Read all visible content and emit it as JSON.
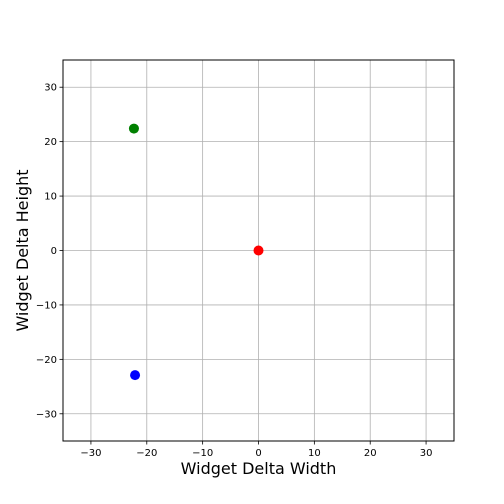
{
  "chart_data": {
    "type": "scatter",
    "title": "",
    "xlabel": "Widget Delta Width",
    "ylabel": "Widget Delta Height",
    "xlim": [
      -35,
      35
    ],
    "ylim": [
      -35,
      35
    ],
    "xticks": [
      -30,
      -20,
      -10,
      0,
      10,
      20,
      30
    ],
    "yticks": [
      -30,
      -20,
      -10,
      0,
      10,
      20,
      30
    ],
    "xtick_labels": [
      "−30",
      "−20",
      "−10",
      "0",
      "10",
      "20",
      "30"
    ],
    "ytick_labels": [
      "−30",
      "−20",
      "−10",
      "0",
      "10",
      "20",
      "30"
    ],
    "grid": true,
    "points": [
      {
        "x": -22.3,
        "y": 22.4,
        "color": "#008000"
      },
      {
        "x": 0,
        "y": 0,
        "color": "#ff0000"
      },
      {
        "x": -22.1,
        "y": -22.9,
        "color": "#0000ff"
      }
    ]
  }
}
